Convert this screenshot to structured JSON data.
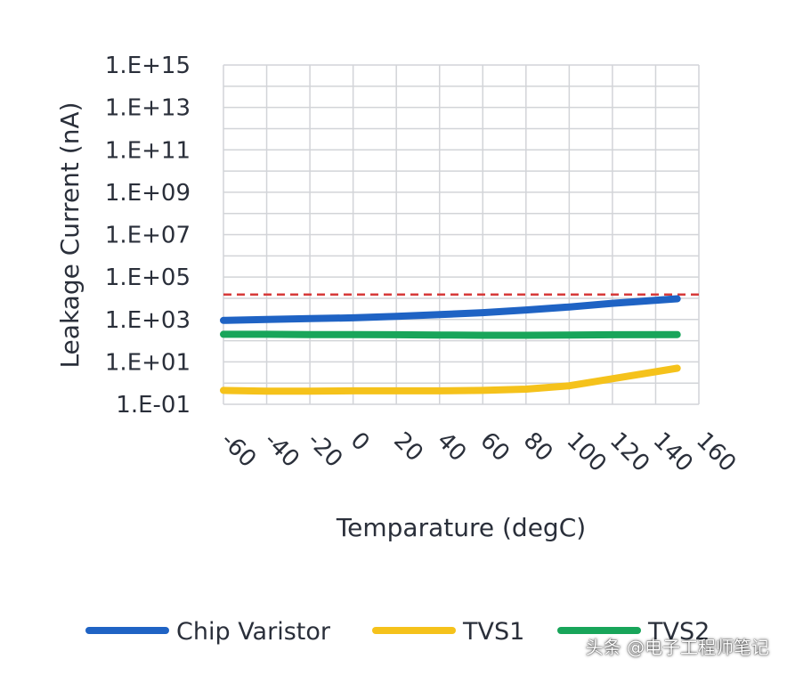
{
  "chart_data": {
    "type": "line",
    "title": "",
    "xlabel": "Temparature (degC)",
    "ylabel": "Leakage Current (nA)",
    "y_scale": "log",
    "ylim": [
      0.1,
      1000000000000000.0
    ],
    "xlim": [
      -60,
      160
    ],
    "x_ticks": [
      "-60",
      "-40",
      "-20",
      "0",
      "20",
      "40",
      "60",
      "80",
      "100",
      "120",
      "140",
      "160"
    ],
    "y_ticks": [
      "1.E-01",
      "1.E+01",
      "1.E+03",
      "1.E+05",
      "1.E+07",
      "1.E+09",
      "1.E+11",
      "1.E+13",
      "1.E+15"
    ],
    "grid": true,
    "legend_position": "bottom",
    "reference_line": {
      "y": 15000,
      "style": "dashed",
      "color": "#d63a3a"
    },
    "series": [
      {
        "name": "Chip Varistor",
        "color": "#1f63c4",
        "x": [
          -60,
          -40,
          -20,
          0,
          20,
          40,
          60,
          80,
          100,
          120,
          150
        ],
        "y": [
          900,
          1000,
          1100,
          1200,
          1400,
          1700,
          2100,
          2800,
          3900,
          5800,
          9500
        ]
      },
      {
        "name": "TVS1",
        "color": "#f5c21b",
        "x": [
          -60,
          -40,
          -20,
          0,
          20,
          40,
          60,
          80,
          100,
          120,
          150
        ],
        "y": [
          0.45,
          0.42,
          0.42,
          0.43,
          0.43,
          0.43,
          0.45,
          0.52,
          0.75,
          1.6,
          5.0
        ]
      },
      {
        "name": "TVS2",
        "color": "#18a55a",
        "x": [
          -60,
          -40,
          -20,
          0,
          20,
          40,
          60,
          80,
          100,
          120,
          150
        ],
        "y": [
          200,
          200,
          195,
          195,
          190,
          185,
          180,
          180,
          185,
          190,
          195
        ]
      }
    ]
  },
  "watermark": "头条 @电子工程师笔记"
}
